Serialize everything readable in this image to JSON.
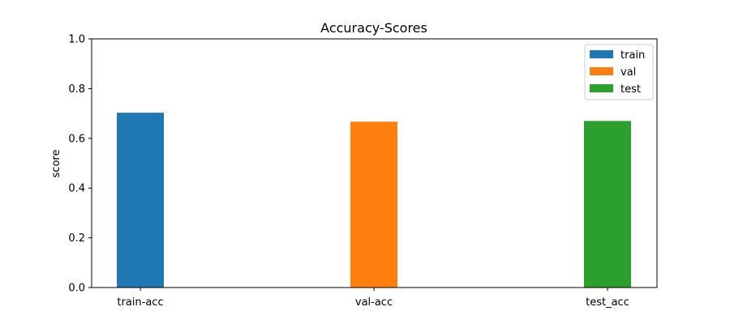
{
  "chart_data": {
    "type": "bar",
    "title": "Accuracy-Scores",
    "xlabel": "",
    "ylabel": "score",
    "ylim": [
      0,
      1.0
    ],
    "y_ticks": [
      "0.0",
      "0.2",
      "0.4",
      "0.6",
      "0.8",
      "1.0"
    ],
    "categories": [
      "train-acc",
      "val-acc",
      "test_acc"
    ],
    "series": [
      {
        "name": "train",
        "color": "#1f77b4",
        "values": [
          0.703,
          0,
          0
        ]
      },
      {
        "name": "val",
        "color": "#ff7f0e",
        "values": [
          0,
          0.667,
          0
        ]
      },
      {
        "name": "test",
        "color": "#2ca02c",
        "values": [
          0,
          0,
          0.67
        ]
      }
    ],
    "grid": false,
    "legend_position": "top-right"
  }
}
